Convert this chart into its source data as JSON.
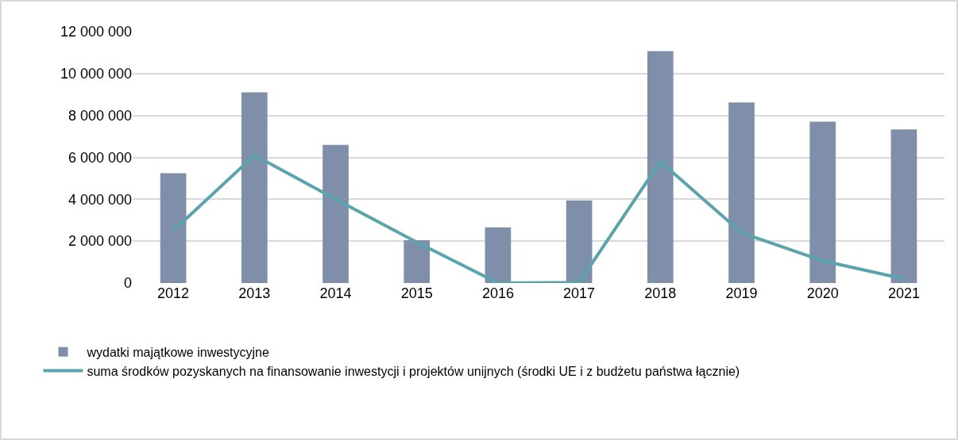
{
  "chart_data": {
    "type": "bar",
    "categories": [
      "2012",
      "2013",
      "2014",
      "2015",
      "2016",
      "2017",
      "2018",
      "2019",
      "2020",
      "2021"
    ],
    "series": [
      {
        "name": "wydatki majątkowe inwestycyjne",
        "color": "#7f8faa",
        "values": [
          5240000,
          9100000,
          6600000,
          2040000,
          2660000,
          3950000,
          11070000,
          8620000,
          7700000,
          7330000
        ]
      },
      {
        "name": "suma środków pozyskanych na finansowanie inwestycji i projektów unijnych (środki UE i z budżetu państwa łącznie)",
        "type": "line",
        "color": "#5ba3ad",
        "values": [
          2500000,
          6100000,
          4000000,
          1950000,
          0,
          30000,
          5800000,
          2400000,
          1060000,
          200000
        ]
      }
    ],
    "ylim": [
      0,
      12000000
    ],
    "yticks": [
      {
        "value": 0,
        "label": "0"
      },
      {
        "value": 2000000,
        "label": "2 000 000"
      },
      {
        "value": 4000000,
        "label": "4 000 000"
      },
      {
        "value": 6000000,
        "label": "6 000 000"
      },
      {
        "value": 8000000,
        "label": "8 000 000"
      },
      {
        "value": 10000000,
        "label": "10 000 000"
      },
      {
        "value": 12000000,
        "label": "12 000 000"
      }
    ],
    "grid": "y",
    "legend": "bottom",
    "marker": "none",
    "line_style": "solid"
  }
}
